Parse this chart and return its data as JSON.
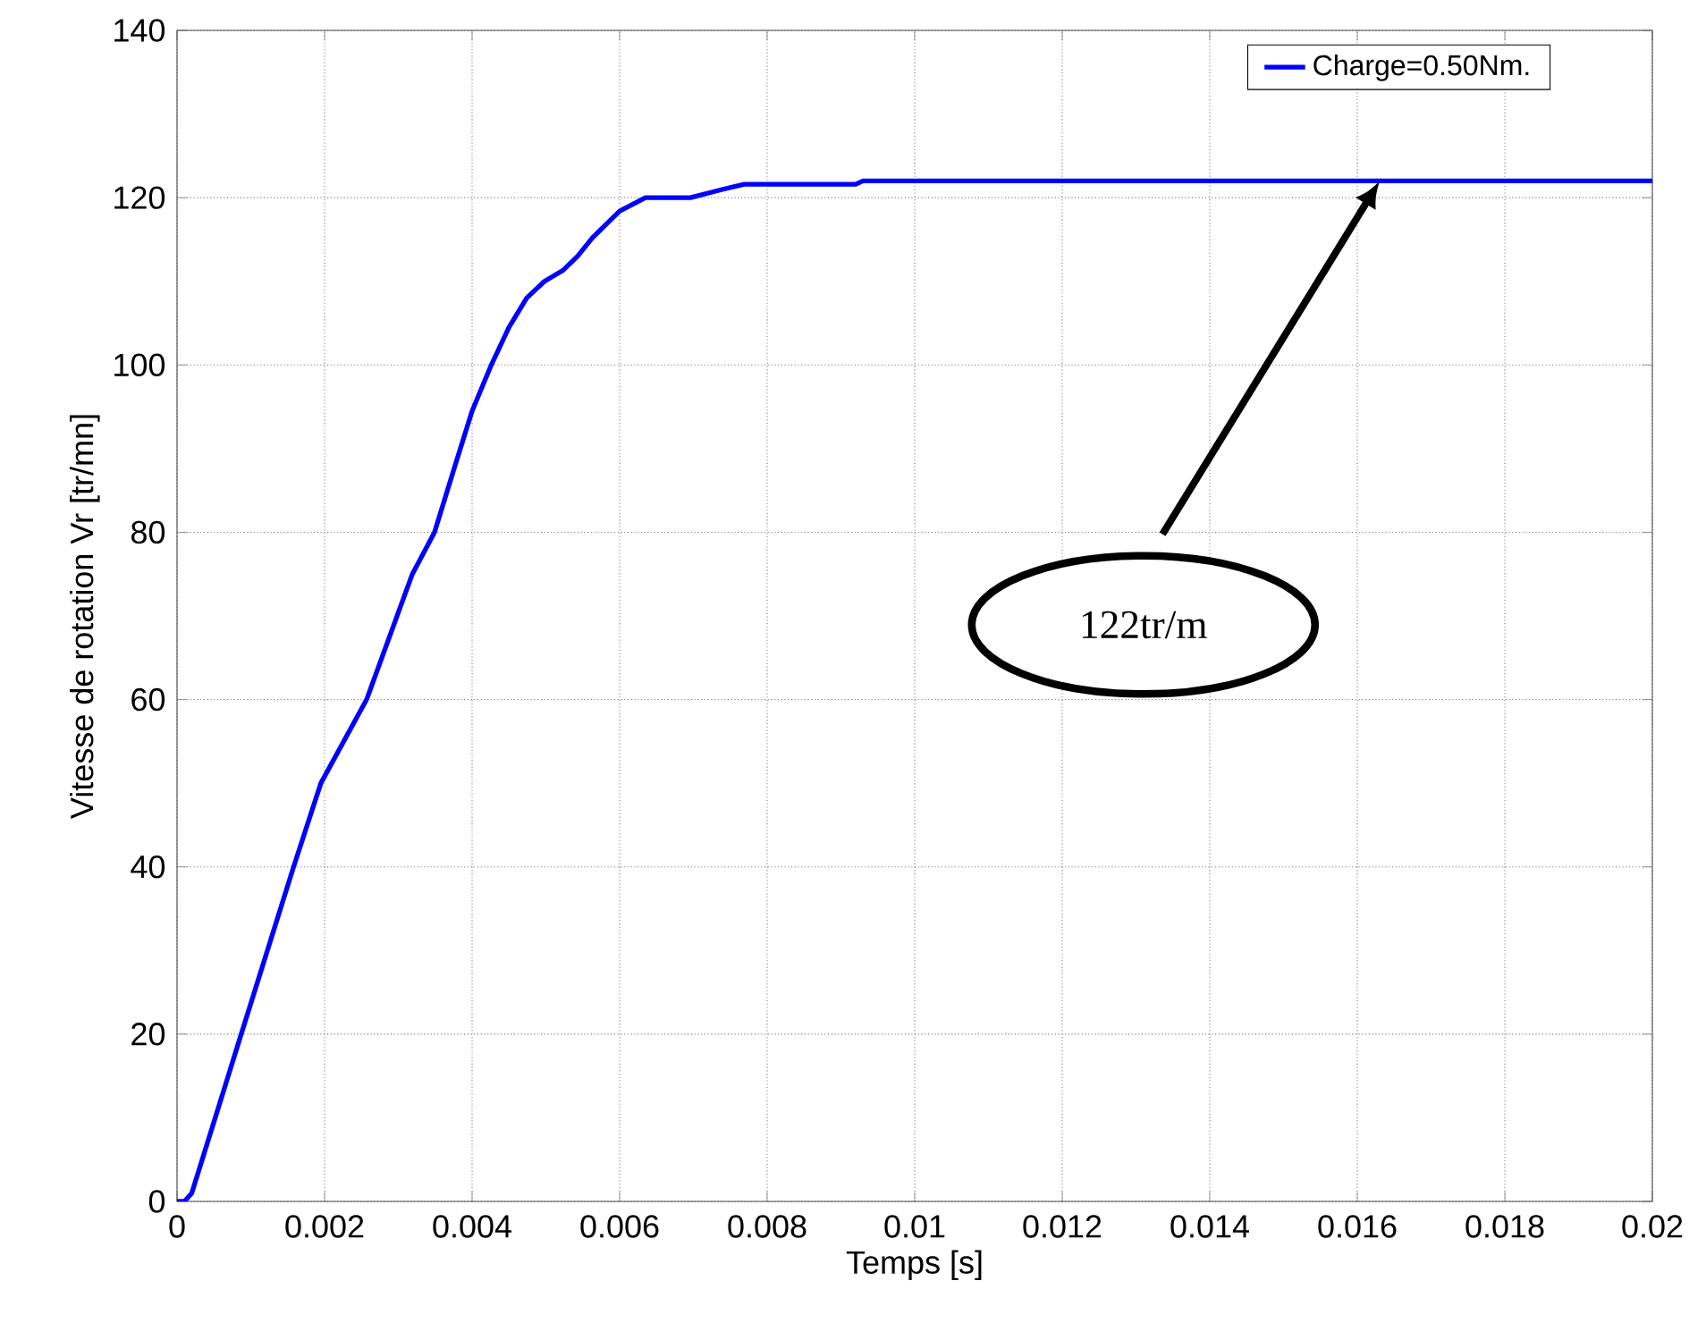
{
  "chart_data": {
    "type": "line",
    "xlabel": "Temps [s]",
    "ylabel": "Vitesse de rotation Vr [tr/mn]",
    "xlim": [
      0,
      0.02
    ],
    "ylim": [
      0,
      140
    ],
    "xticks": [
      0,
      0.002,
      0.004,
      0.006,
      0.008,
      0.01,
      0.012,
      0.014,
      0.016,
      0.018,
      0.02
    ],
    "yticks": [
      0,
      20,
      40,
      60,
      80,
      100,
      120,
      140
    ],
    "grid": true,
    "legend": "top right",
    "line_style": "solid",
    "marker": "none",
    "series": [
      {
        "name": "Charge=0.50Nm.",
        "color": "#0000ff",
        "x": [
          0,
          0.0001,
          0.0002,
          0.00087,
          0.00158,
          0.00195,
          0.00257,
          0.00319,
          0.00349,
          0.00377,
          0.004,
          0.00426,
          0.0045,
          0.00474,
          0.00498,
          0.00523,
          0.00543,
          0.00563,
          0.006,
          0.00635,
          0.00696,
          0.0074,
          0.00769,
          0.0092,
          0.0093,
          0.02
        ],
        "values": [
          0,
          0,
          1,
          20,
          40,
          50,
          60,
          75,
          80,
          88,
          94.5,
          100,
          104.5,
          108,
          110,
          111.3,
          113,
          115.2,
          118.4,
          120,
          120,
          121,
          121.6,
          121.6,
          122,
          122
        ]
      }
    ],
    "annotations": [
      "122tr/m"
    ]
  }
}
